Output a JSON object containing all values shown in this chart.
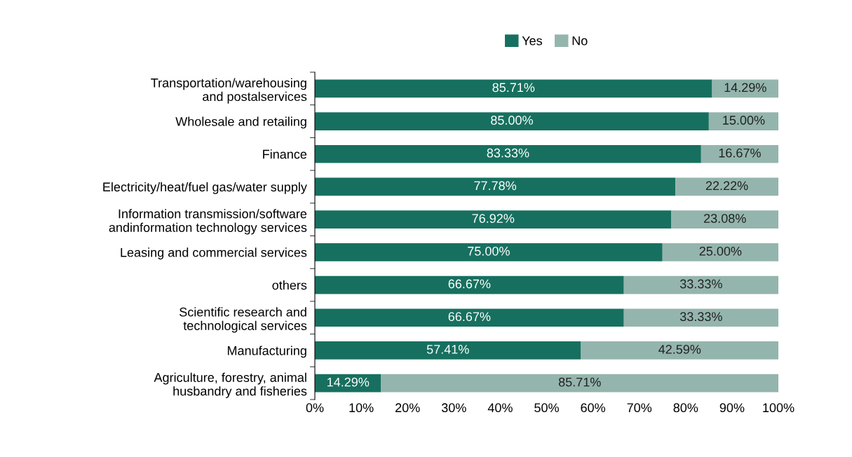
{
  "chart_data": {
    "type": "bar",
    "orientation": "horizontal",
    "stacked": true,
    "categories": [
      "Transportation/warehousing\nand postalservices",
      "Wholesale and retailing",
      "Finance",
      "Electricity/heat/fuel gas/water supply",
      "Information transmission/software\nandinformation technology services",
      "Leasing and commercial services",
      "others",
      "Scientific research and\ntechnological services",
      "Manufacturing",
      "Agriculture, forestry, animal\nhusbandry and fisheries"
    ],
    "series": [
      {
        "name": "Yes",
        "color": "#17705f",
        "values": [
          85.71,
          85.0,
          83.33,
          77.78,
          76.92,
          75.0,
          66.67,
          66.67,
          57.41,
          14.29
        ]
      },
      {
        "name": "No",
        "color": "#94b5ad",
        "values": [
          14.29,
          15.0,
          16.67,
          22.22,
          23.08,
          25.0,
          33.33,
          33.33,
          42.59,
          85.71
        ]
      }
    ],
    "xlim": [
      0,
      100
    ],
    "xticks": [
      {
        "value": 0,
        "label": "0%"
      },
      {
        "value": 10,
        "label": "10%"
      },
      {
        "value": 20,
        "label": "20%"
      },
      {
        "value": 30,
        "label": "30%"
      },
      {
        "value": 40,
        "label": "40%"
      },
      {
        "value": 50,
        "label": "50%"
      },
      {
        "value": 60,
        "label": "60%"
      },
      {
        "value": 70,
        "label": "70%"
      },
      {
        "value": 80,
        "label": "80%"
      },
      {
        "value": 90,
        "label": "90%"
      },
      {
        "value": 100,
        "label": "100%"
      }
    ],
    "value_labels": [
      [
        "85.71%",
        "85.00%",
        "83.33%",
        "77.78%",
        "76.92%",
        "75.00%",
        "66.67%",
        "66.67%",
        "57.41%",
        "14.29%"
      ],
      [
        "14.29%",
        "15.00%",
        "16.67%",
        "22.22%",
        "23.08%",
        "25.00%",
        "33.33%",
        "33.33%",
        "42.59%",
        "85.71%"
      ]
    ],
    "legend": "top",
    "grid": false
  }
}
